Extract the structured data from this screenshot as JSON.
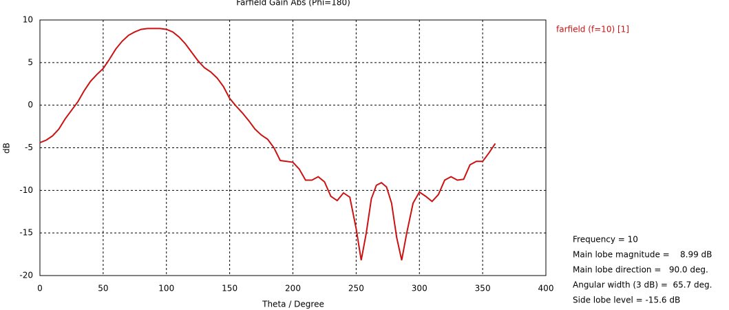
{
  "chart_data": {
    "type": "line",
    "title": "Farfield Gain Abs (Phi=180)",
    "x_label": "Theta / Degree",
    "y_label": "dB",
    "xlim": [
      0,
      400
    ],
    "ylim": [
      -20,
      10
    ],
    "xticks": [
      0,
      50,
      100,
      150,
      200,
      250,
      300,
      350,
      400
    ],
    "yticks": [
      -20,
      -15,
      -10,
      -5,
      0,
      5,
      10
    ],
    "grid": true,
    "x": [
      0,
      5,
      10,
      15,
      20,
      25,
      30,
      35,
      40,
      45,
      50,
      55,
      60,
      65,
      70,
      75,
      80,
      85,
      90,
      95,
      100,
      105,
      110,
      115,
      120,
      125,
      130,
      135,
      140,
      145,
      150,
      155,
      160,
      165,
      170,
      175,
      180,
      185,
      190,
      195,
      200,
      205,
      210,
      215,
      220,
      225,
      230,
      235,
      240,
      245,
      250,
      254,
      258,
      262,
      266,
      270,
      274,
      278,
      282,
      286,
      290,
      295,
      300,
      305,
      310,
      315,
      320,
      325,
      330,
      335,
      340,
      345,
      350,
      355,
      360
    ],
    "series": [
      {
        "name": "farfield (f=10) [1]",
        "color": "#cc1111",
        "values": [
          -4.4,
          -4.1,
          -3.6,
          -2.8,
          -1.6,
          -0.6,
          0.4,
          1.7,
          2.8,
          3.6,
          4.3,
          5.4,
          6.6,
          7.5,
          8.2,
          8.6,
          8.9,
          9.0,
          9.0,
          9.0,
          8.9,
          8.6,
          8.0,
          7.2,
          6.2,
          5.2,
          4.4,
          3.9,
          3.2,
          2.2,
          0.8,
          -0.1,
          -0.9,
          -1.8,
          -2.8,
          -3.5,
          -4.0,
          -5.0,
          -6.5,
          -6.6,
          -6.7,
          -7.5,
          -8.8,
          -8.8,
          -8.4,
          -9.0,
          -10.7,
          -11.2,
          -10.3,
          -10.8,
          -14.5,
          -18.2,
          -15.0,
          -11.0,
          -9.4,
          -9.1,
          -9.6,
          -11.5,
          -15.5,
          -18.2,
          -15.0,
          -11.5,
          -10.2,
          -10.7,
          -11.3,
          -10.5,
          -8.8,
          -8.4,
          -8.8,
          -8.7,
          -7.0,
          -6.6,
          -6.6,
          -5.6,
          -4.5
        ]
      }
    ],
    "info": [
      "Frequency = 10",
      "Main lobe magnitude =    8.99 dB",
      "Main lobe direction =   90.0 deg.",
      "Angular width (3 dB) =  65.7 deg.",
      "Side lobe level = -15.6 dB"
    ]
  }
}
